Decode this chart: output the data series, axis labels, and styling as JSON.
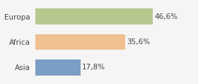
{
  "categories": [
    "Europa",
    "Africa",
    "Asia"
  ],
  "values": [
    46.6,
    35.6,
    17.8
  ],
  "labels": [
    "46,6%",
    "35,6%",
    "17,8%"
  ],
  "bar_colors": [
    "#b5c98e",
    "#f0c090",
    "#7b9fc4"
  ],
  "background_color": "#f5f5f5",
  "xlim": [
    0,
    55
  ],
  "bar_height": 0.62,
  "label_fontsize": 7.5,
  "tick_fontsize": 7.5
}
